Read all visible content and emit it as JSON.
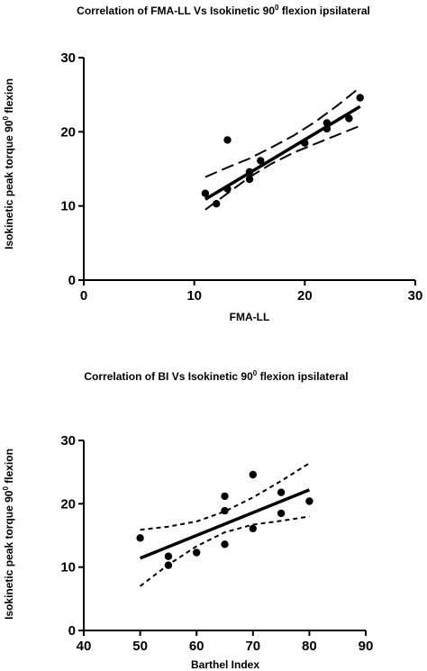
{
  "chart_data": [
    {
      "type": "scatter",
      "title": "Correlation of FMA-LL Vs Isokinetic 90",
      "title_superscript": "0",
      "title_suffix": " flexion ipsilateral",
      "xlabel": "FMA-LL",
      "ylabel": "Isokinetic peak torque 90",
      "ylabel_superscript": "0",
      "ylabel_suffix": " flexion",
      "xlim": [
        0,
        30
      ],
      "ylim": [
        0,
        30
      ],
      "xticks": [
        "0",
        "10",
        "20",
        "30"
      ],
      "yticks": [
        "0",
        "10",
        "20",
        "30"
      ],
      "points": [
        {
          "x": 11,
          "y": 11.7
        },
        {
          "x": 12,
          "y": 10.3
        },
        {
          "x": 13,
          "y": 12.3
        },
        {
          "x": 13,
          "y": 18.9
        },
        {
          "x": 15,
          "y": 13.6
        },
        {
          "x": 15,
          "y": 14.6
        },
        {
          "x": 16,
          "y": 16.1
        },
        {
          "x": 20,
          "y": 18.5
        },
        {
          "x": 22,
          "y": 20.4
        },
        {
          "x": 22,
          "y": 21.2
        },
        {
          "x": 24,
          "y": 21.8
        },
        {
          "x": 25,
          "y": 24.6
        }
      ],
      "fit_line": [
        [
          11,
          10.9
        ],
        [
          25,
          23.4
        ]
      ],
      "ci_upper": [
        [
          11,
          13.9
        ],
        [
          13,
          15.2
        ],
        [
          15,
          16.4
        ],
        [
          17,
          17.9
        ],
        [
          19,
          19.5
        ],
        [
          21,
          21.4
        ],
        [
          23,
          23.6
        ],
        [
          25,
          26.0
        ]
      ],
      "ci_lower": [
        [
          11,
          9.5
        ],
        [
          13,
          11.7
        ],
        [
          15,
          13.9
        ],
        [
          17,
          15.7
        ],
        [
          19,
          17.2
        ],
        [
          21,
          18.4
        ],
        [
          23,
          19.6
        ],
        [
          25,
          20.8
        ]
      ]
    },
    {
      "type": "scatter",
      "title": "Correlation of  BI Vs Isokinetic 90",
      "title_superscript": "0",
      "title_suffix": " flexion ipsilateral",
      "xlabel": "Barthel Index",
      "ylabel": "Isokinetic peak torque 90",
      "ylabel_superscript": "0",
      "ylabel_suffix": " flexion",
      "xlim": [
        40,
        90
      ],
      "ylim": [
        0,
        30
      ],
      "xticks": [
        "40",
        "50",
        "60",
        "70",
        "80",
        "90"
      ],
      "yticks": [
        "0",
        "10",
        "20",
        "30"
      ],
      "points": [
        {
          "x": 50,
          "y": 14.6
        },
        {
          "x": 55,
          "y": 11.7
        },
        {
          "x": 55,
          "y": 10.3
        },
        {
          "x": 60,
          "y": 12.3
        },
        {
          "x": 65,
          "y": 21.2
        },
        {
          "x": 65,
          "y": 18.9
        },
        {
          "x": 65,
          "y": 13.6
        },
        {
          "x": 70,
          "y": 24.6
        },
        {
          "x": 70,
          "y": 16.1
        },
        {
          "x": 75,
          "y": 21.8
        },
        {
          "x": 75,
          "y": 18.5
        },
        {
          "x": 80,
          "y": 20.4
        }
      ],
      "fit_line": [
        [
          50,
          11.4
        ],
        [
          80,
          22.2
        ]
      ],
      "ci_upper": [
        [
          50,
          15.9
        ],
        [
          55,
          16.4
        ],
        [
          60,
          17.2
        ],
        [
          65,
          18.8
        ],
        [
          70,
          21.0
        ],
        [
          75,
          23.6
        ],
        [
          80,
          26.4
        ]
      ],
      "ci_lower": [
        [
          50,
          7.0
        ],
        [
          55,
          10.4
        ],
        [
          60,
          13.3
        ],
        [
          65,
          15.5
        ],
        [
          70,
          16.7
        ],
        [
          75,
          17.3
        ],
        [
          80,
          18.0
        ]
      ]
    }
  ]
}
